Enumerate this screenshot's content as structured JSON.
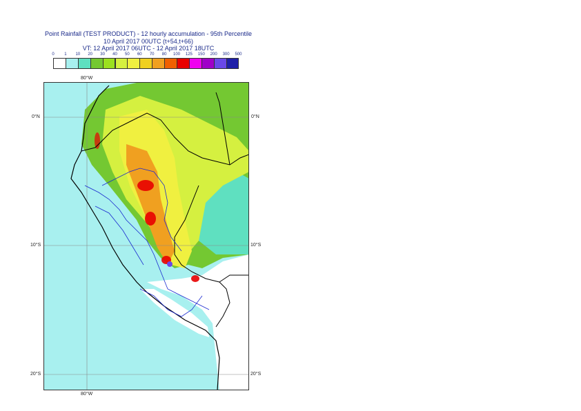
{
  "header": {
    "title_line1": "Point Rainfall (TEST PRODUCT) - 12 hourly accumulation - 95th Percentile",
    "title_line2": "10 April 2017 00UTC (t+54,t+66)",
    "title_line3": "VT: 12 April 2017 06UTC - 12 April 2017 18UTC"
  },
  "legend": {
    "thresholds": [
      "0",
      "1",
      "10",
      "20",
      "30",
      "40",
      "50",
      "60",
      "70",
      "80",
      "100",
      "125",
      "150",
      "200",
      "300",
      "500"
    ],
    "colors": [
      "#ffffff",
      "#a8f0ef",
      "#5fe0c0",
      "#74c832",
      "#9be020",
      "#d5f040",
      "#f0f040",
      "#f0d020",
      "#f0a020",
      "#f06000",
      "#e80000",
      "#f000f0",
      "#a000c8",
      "#6a48e8",
      "#2020a8",
      "#101048"
    ]
  },
  "axes": {
    "lon_top": "80°W",
    "lon_bottom": "80°W",
    "lat_left": [
      "0°N",
      "10°S",
      "20°S"
    ],
    "lat_right": [
      "0°N",
      "10°S",
      "20°S"
    ]
  }
}
